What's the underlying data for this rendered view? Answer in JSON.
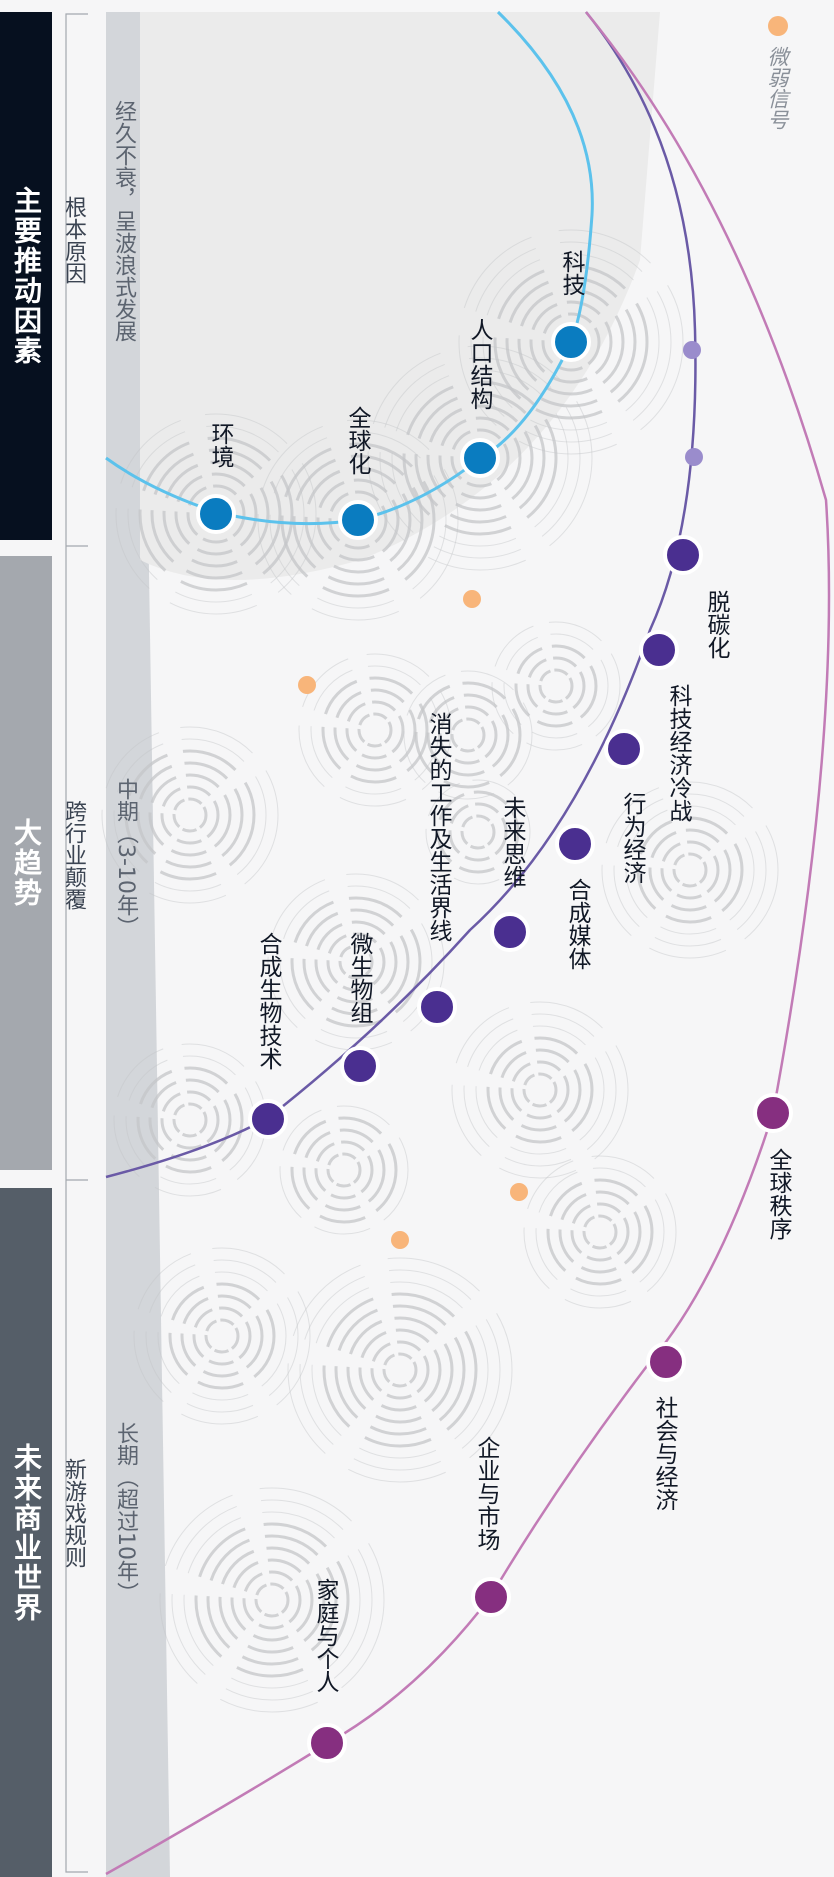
{
  "stages": [
    {
      "title": "主要推动因素",
      "subtitle": "根本原因",
      "desc": "经久不衰，呈波浪式发展"
    },
    {
      "title": "大趋势",
      "subtitle": "跨行业颠覆",
      "desc": "中期（3-10年）"
    },
    {
      "title": "未来商业世界",
      "subtitle": "新游戏规则",
      "desc": "长期（超过10年）"
    }
  ],
  "legend": {
    "label": "微弱信号",
    "color": "#f8b57a"
  },
  "drivers": [
    "科技",
    "人口结构",
    "全球化",
    "环境"
  ],
  "megatrends": [
    "脱碳化",
    "科技经济冷战",
    "行为经济",
    "合成媒体",
    "未来思维",
    "消失的工作及生活界线",
    "微生物组",
    "合成生物技术"
  ],
  "future_world": [
    "全球秩序",
    "社会与经济",
    "企业与市场",
    "家庭与个人"
  ],
  "colors": {
    "drivers": "#0a7cc0",
    "megatrends": "#4a2f90",
    "future": "#862f80",
    "weak_signal": "#f8b57a"
  }
}
